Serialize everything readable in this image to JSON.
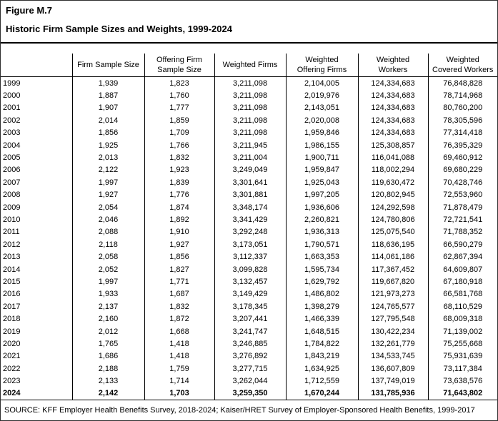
{
  "figure": {
    "label": "Figure M.7",
    "title": "Historic Firm Sample Sizes and Weights, 1999-2024"
  },
  "table": {
    "columns": [
      "",
      "Firm Sample Size",
      "Offering Firm\nSample Size",
      "Weighted Firms",
      "Weighted\nOffering Firms",
      "Weighted\nWorkers",
      "Weighted\nCovered Workers"
    ],
    "rows": [
      {
        "year": "1999",
        "values": [
          "1,939",
          "1,823",
          "3,211,098",
          "2,104,005",
          "124,334,683",
          "76,848,828"
        ]
      },
      {
        "year": "2000",
        "values": [
          "1,887",
          "1,760",
          "3,211,098",
          "2,019,976",
          "124,334,683",
          "78,714,968"
        ]
      },
      {
        "year": "2001",
        "values": [
          "1,907",
          "1,777",
          "3,211,098",
          "2,143,051",
          "124,334,683",
          "80,760,200"
        ]
      },
      {
        "year": "2002",
        "values": [
          "2,014",
          "1,859",
          "3,211,098",
          "2,020,008",
          "124,334,683",
          "78,305,596"
        ]
      },
      {
        "year": "2003",
        "values": [
          "1,856",
          "1,709",
          "3,211,098",
          "1,959,846",
          "124,334,683",
          "77,314,418"
        ]
      },
      {
        "year": "2004",
        "values": [
          "1,925",
          "1,766",
          "3,211,945",
          "1,986,155",
          "125,308,857",
          "76,395,329"
        ]
      },
      {
        "year": "2005",
        "values": [
          "2,013",
          "1,832",
          "3,211,004",
          "1,900,711",
          "116,041,088",
          "69,460,912"
        ]
      },
      {
        "year": "2006",
        "values": [
          "2,122",
          "1,923",
          "3,249,049",
          "1,959,847",
          "118,002,294",
          "69,680,229"
        ]
      },
      {
        "year": "2007",
        "values": [
          "1,997",
          "1,839",
          "3,301,641",
          "1,925,043",
          "119,630,472",
          "70,428,746"
        ]
      },
      {
        "year": "2008",
        "values": [
          "1,927",
          "1,776",
          "3,301,881",
          "1,997,205",
          "120,802,945",
          "72,553,960"
        ]
      },
      {
        "year": "2009",
        "values": [
          "2,054",
          "1,874",
          "3,348,174",
          "1,936,606",
          "124,292,598",
          "71,878,479"
        ]
      },
      {
        "year": "2010",
        "values": [
          "2,046",
          "1,892",
          "3,341,429",
          "2,260,821",
          "124,780,806",
          "72,721,541"
        ]
      },
      {
        "year": "2011",
        "values": [
          "2,088",
          "1,910",
          "3,292,248",
          "1,936,313",
          "125,075,540",
          "71,788,352"
        ]
      },
      {
        "year": "2012",
        "values": [
          "2,118",
          "1,927",
          "3,173,051",
          "1,790,571",
          "118,636,195",
          "66,590,279"
        ]
      },
      {
        "year": "2013",
        "values": [
          "2,058",
          "1,856",
          "3,112,337",
          "1,663,353",
          "114,061,186",
          "62,867,394"
        ]
      },
      {
        "year": "2014",
        "values": [
          "2,052",
          "1,827",
          "3,099,828",
          "1,595,734",
          "117,367,452",
          "64,609,807"
        ]
      },
      {
        "year": "2015",
        "values": [
          "1,997",
          "1,771",
          "3,132,457",
          "1,629,792",
          "119,667,820",
          "67,180,918"
        ]
      },
      {
        "year": "2016",
        "values": [
          "1,933",
          "1,687",
          "3,149,429",
          "1,486,802",
          "121,973,273",
          "66,581,768"
        ]
      },
      {
        "year": "2017",
        "values": [
          "2,137",
          "1,832",
          "3,178,345",
          "1,398,279",
          "124,765,577",
          "68,110,529"
        ]
      },
      {
        "year": "2018",
        "values": [
          "2,160",
          "1,872",
          "3,207,441",
          "1,466,339",
          "127,795,548",
          "68,009,318"
        ]
      },
      {
        "year": "2019",
        "values": [
          "2,012",
          "1,668",
          "3,241,747",
          "1,648,515",
          "130,422,234",
          "71,139,002"
        ]
      },
      {
        "year": "2020",
        "values": [
          "1,765",
          "1,418",
          "3,246,885",
          "1,784,822",
          "132,261,779",
          "75,255,668"
        ]
      },
      {
        "year": "2021",
        "values": [
          "1,686",
          "1,418",
          "3,276,892",
          "1,843,219",
          "134,533,745",
          "75,931,639"
        ]
      },
      {
        "year": "2022",
        "values": [
          "2,188",
          "1,759",
          "3,277,715",
          "1,634,925",
          "136,607,809",
          "73,117,384"
        ]
      },
      {
        "year": "2023",
        "values": [
          "2,133",
          "1,714",
          "3,262,044",
          "1,712,559",
          "137,749,019",
          "73,638,576"
        ]
      },
      {
        "year": "2024",
        "values": [
          "2,142",
          "1,703",
          "3,259,350",
          "1,670,244",
          "131,785,936",
          "71,643,802"
        ],
        "bold": true
      }
    ]
  },
  "source": "SOURCE: KFF Employer Health Benefits Survey, 2018-2024; Kaiser/HRET Survey of Employer-Sponsored Health Benefits, 1999-2017"
}
